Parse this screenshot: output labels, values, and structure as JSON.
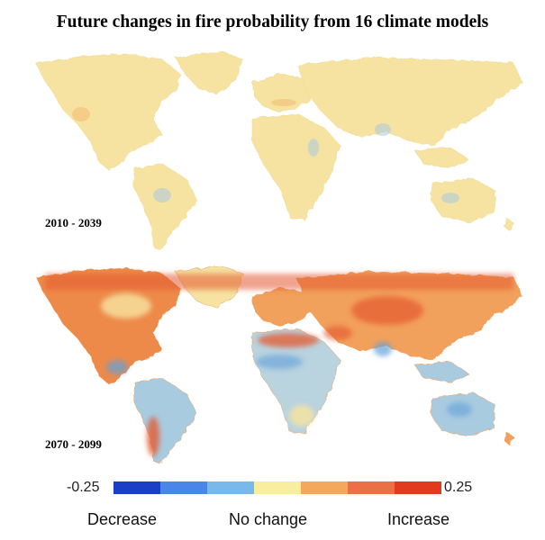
{
  "title": "Future changes in fire probability from 16 climate models",
  "maps": [
    {
      "period": "2010 - 2039"
    },
    {
      "period": "2070 - 2099"
    }
  ],
  "legend": {
    "min_label": "-0.25",
    "max_label": "0.25",
    "words": [
      "Decrease",
      "No change",
      "Increase"
    ],
    "colors": [
      "#1a3fc6",
      "#4a86e8",
      "#79b8ea",
      "#f7eea0",
      "#f3a85c",
      "#ec7045",
      "#e23a1e"
    ]
  },
  "palette": {
    "neutral": "#f6e6a0",
    "light_blue": "#a9cbe0",
    "blue": "#5f9fd8",
    "orange": "#f2a15c",
    "red": "#e45a2e"
  }
}
